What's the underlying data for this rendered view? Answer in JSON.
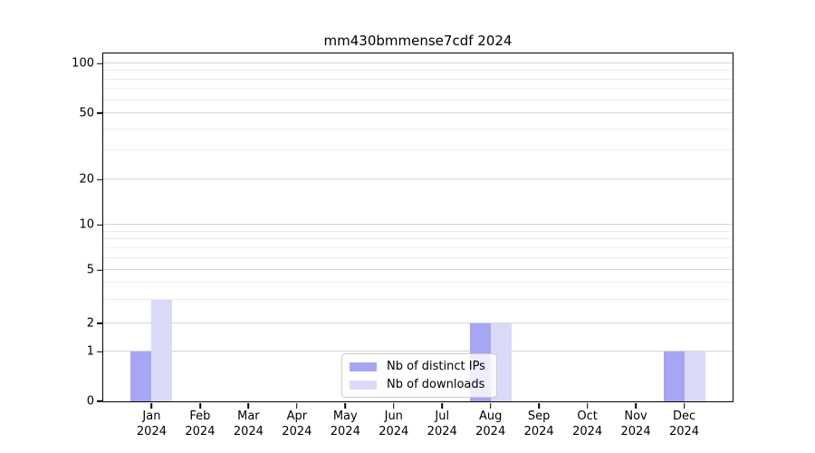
{
  "chart_data": {
    "type": "bar",
    "title": "mm430bmmense7cdf 2024",
    "categories": [
      "Jan 2024",
      "Feb 2024",
      "Mar 2024",
      "Apr 2024",
      "May 2024",
      "Jun 2024",
      "Jul 2024",
      "Aug 2024",
      "Sep 2024",
      "Oct 2024",
      "Nov 2024",
      "Dec 2024"
    ],
    "months": [
      {
        "month": "Jan",
        "year": "2024"
      },
      {
        "month": "Feb",
        "year": "2024"
      },
      {
        "month": "Mar",
        "year": "2024"
      },
      {
        "month": "Apr",
        "year": "2024"
      },
      {
        "month": "May",
        "year": "2024"
      },
      {
        "month": "Jun",
        "year": "2024"
      },
      {
        "month": "Jul",
        "year": "2024"
      },
      {
        "month": "Aug",
        "year": "2024"
      },
      {
        "month": "Sep",
        "year": "2024"
      },
      {
        "month": "Oct",
        "year": "2024"
      },
      {
        "month": "Nov",
        "year": "2024"
      },
      {
        "month": "Dec",
        "year": "2024"
      }
    ],
    "series": [
      {
        "name": "Nb of distinct IPs",
        "color": "#a6a6f4",
        "values": [
          1,
          0,
          0,
          0,
          0,
          0,
          0,
          2,
          0,
          0,
          0,
          1
        ]
      },
      {
        "name": "Nb of downloads",
        "color": "#dadaf8",
        "values": [
          3,
          0,
          0,
          0,
          0,
          0,
          0,
          2,
          0,
          0,
          0,
          1
        ]
      }
    ],
    "yscale": "symlog",
    "ylim": [
      0,
      115
    ],
    "y_ticks": [
      0,
      1,
      2,
      5,
      10,
      20,
      50,
      100
    ],
    "y_minor_ticks": [
      3,
      4,
      6,
      7,
      8,
      9,
      30,
      40,
      60,
      70,
      80,
      90
    ],
    "y_scale_anchors": [
      [
        0,
        0
      ],
      [
        1,
        14.3
      ],
      [
        2,
        22.5
      ],
      [
        5,
        37.7
      ],
      [
        10,
        50.7
      ],
      [
        20,
        63.7
      ],
      [
        50,
        82.8
      ],
      [
        100,
        97.1
      ]
    ],
    "grid": true,
    "legend_position": "lower center",
    "colors": {
      "major_grid": "#d4d4d4",
      "minor_grid": "#ededed",
      "axis": "#000000",
      "background": "#ffffff",
      "legend_border": "#cccccc"
    }
  }
}
